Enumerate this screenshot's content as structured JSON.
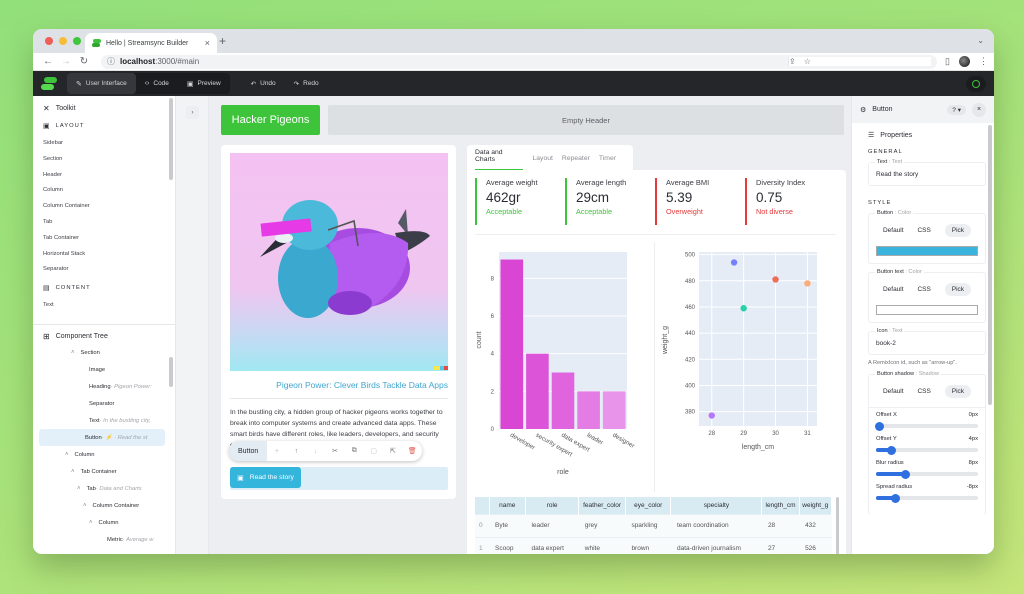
{
  "browser": {
    "tab_title": "Hello | Streamsync Builder",
    "url_host": "localhost",
    "url_path": ":3000/#main",
    "traffic_lights": [
      "#ee5f57",
      "#f6bd3b",
      "#3ec63c"
    ]
  },
  "topbar": {
    "modes": [
      {
        "icon": "brush",
        "label": "User Interface",
        "active": true
      },
      {
        "icon": "code",
        "label": "Code",
        "active": false
      },
      {
        "icon": "preview",
        "label": "Preview",
        "active": false
      }
    ],
    "undo_label": "Undo",
    "redo_label": "Redo"
  },
  "toolkit": {
    "title": "Toolkit",
    "layout_section": "LAYOUT",
    "layout_items": [
      "Sidebar",
      "Section",
      "Header",
      "Column",
      "Column Container",
      "Tab",
      "Tab Container",
      "Horizontal Stack",
      "Separator"
    ],
    "content_section": "CONTENT",
    "content_items": [
      "Text"
    ]
  },
  "component_tree": {
    "title": "Component Tree",
    "rows": [
      {
        "indent": 28,
        "caret": "˄",
        "label": "Section",
        "sub": ""
      },
      {
        "indent": 46,
        "caret": "",
        "label": "Image",
        "sub": ""
      },
      {
        "indent": 46,
        "caret": "",
        "label": "Heading",
        "sub": " · Pigeon Power:"
      },
      {
        "indent": 46,
        "caret": "",
        "label": "Separator",
        "sub": ""
      },
      {
        "indent": 46,
        "caret": "",
        "label": "Text",
        "sub": " · In the bustling city,"
      },
      {
        "indent": 46,
        "caret": "",
        "label": "Button",
        "sub": " · ⚡ · Read the st",
        "selected": true
      },
      {
        "indent": 22,
        "caret": "˄",
        "label": "Column",
        "sub": ""
      },
      {
        "indent": 28,
        "caret": "˄",
        "label": "Tab Container",
        "sub": ""
      },
      {
        "indent": 34,
        "caret": "˄",
        "label": "Tab",
        "sub": " · Data and Charts"
      },
      {
        "indent": 40,
        "caret": "˄",
        "label": "Column Container",
        "sub": ""
      },
      {
        "indent": 46,
        "caret": "˄",
        "label": "Column",
        "sub": ""
      },
      {
        "indent": 64,
        "caret": "",
        "label": "Metric",
        "sub": " · Average w"
      }
    ]
  },
  "canvas": {
    "header_title": "Hacker Pigeons",
    "empty_header": "Empty Header",
    "heading": "Pigeon Power: Clever Birds Tackle Data Apps",
    "paragraph": "In the bustling city, a hidden group of hacker pigeons works together to break into computer systems and create advanced data apps. These smart birds have different roles, like leaders, developers, and security experts, all working together with their",
    "floating_toolbar": {
      "label": "Button",
      "icons": [
        "add",
        "move-up",
        "move-down",
        "cut",
        "copy",
        "paste",
        "go-to-parent",
        "delete"
      ]
    },
    "story_button": "Read the story",
    "tabs": [
      "Data and Charts",
      "Layout",
      "Repeater",
      "Timer"
    ],
    "metrics": [
      {
        "name": "Average weight",
        "value": "462gr",
        "status": "Acceptable",
        "good": true
      },
      {
        "name": "Average length",
        "value": "29cm",
        "status": "Acceptable",
        "good": true
      },
      {
        "name": "Average BMI",
        "value": "5.39",
        "status": "Overweight",
        "good": false
      },
      {
        "name": "Diversity Index",
        "value": "0.75",
        "status": "Not diverse",
        "good": false
      }
    ],
    "table": {
      "columns": [
        "",
        "name",
        "role",
        "feather_color",
        "eye_color",
        "specialty",
        "length_cm",
        "weight_g"
      ],
      "rows": [
        [
          "0",
          "Byte",
          "leader",
          "grey",
          "sparkling",
          "team coordination",
          "28",
          "432"
        ],
        [
          "1",
          "Scoop",
          "data expert",
          "white",
          "brown",
          "data-driven journalism",
          "27",
          "526"
        ]
      ]
    }
  },
  "chart_data": [
    {
      "type": "bar",
      "title": "",
      "categories": [
        "developer",
        "security expert",
        "data expert",
        "leader",
        "designer"
      ],
      "values": [
        9,
        4,
        3,
        2,
        2
      ],
      "xlabel": "role",
      "ylabel": "count",
      "ylim": [
        0,
        9.4
      ],
      "yticks": [
        0,
        2,
        4,
        6,
        8
      ],
      "colors": [
        "#d946d4",
        "#dc55d9",
        "#df64de",
        "#e37de4",
        "#e794ea"
      ],
      "grid": true
    },
    {
      "type": "scatter",
      "title": "",
      "xlabel": "length_cm",
      "ylabel": "weight_g",
      "xticks": [
        28,
        29,
        30,
        31
      ],
      "yticks": [
        380,
        400,
        420,
        440,
        460,
        480,
        500
      ],
      "xlim": [
        27.6,
        31.3
      ],
      "ylim": [
        369,
        502
      ],
      "points": [
        {
          "x": 28,
          "y": 377,
          "color": "#ab63fa"
        },
        {
          "x": 28.7,
          "y": 494,
          "color": "#636efa"
        },
        {
          "x": 29,
          "y": 459,
          "color": "#00cc96"
        },
        {
          "x": 30,
          "y": 481,
          "color": "#ef553b"
        },
        {
          "x": 31,
          "y": 478,
          "color": "#ffa15a"
        }
      ],
      "grid": true
    }
  ],
  "settings": {
    "component": "Button",
    "help": "?",
    "properties_title": "Properties",
    "general_section": "GENERAL",
    "text_field": {
      "label": "Text",
      "type": "Text",
      "value": "Read the story"
    },
    "style_section": "STYLE",
    "button_color": {
      "label": "Button",
      "type": "Color",
      "options": [
        "Default",
        "CSS",
        "Pick"
      ],
      "value": "#3bb4dd"
    },
    "button_text_color": {
      "label": "Button text",
      "type": "Color",
      "options": [
        "Default",
        "CSS",
        "Pick"
      ],
      "value": "#ffffff"
    },
    "icon_field": {
      "label": "Icon",
      "type": "Text",
      "value": "book-2",
      "hint": "A RemixIcon id, such as \"arrow-up\"."
    },
    "shadow": {
      "label": "Button shadow",
      "type": "Shadow",
      "options": [
        "Default",
        "CSS",
        "Pick"
      ]
    },
    "sliders": [
      {
        "label": "Offset X",
        "value": "0px",
        "pct": 2
      },
      {
        "label": "Offset Y",
        "value": "4px",
        "pct": 14
      },
      {
        "label": "Blur radius",
        "value": "8px",
        "pct": 27
      },
      {
        "label": "Spread radius",
        "value": "-8px",
        "pct": 18
      }
    ]
  }
}
